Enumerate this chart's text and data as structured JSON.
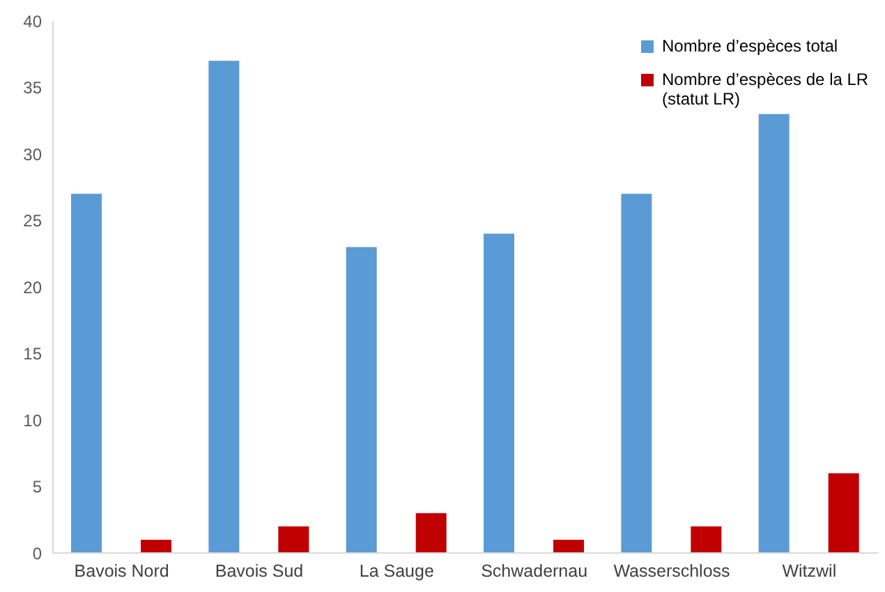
{
  "chart_data": {
    "type": "bar",
    "categories": [
      "Bavois Nord",
      "Bavois Sud",
      "La Sauge",
      "Schwadernau",
      "Wasserschloss",
      "Witzwil"
    ],
    "series": [
      {
        "name": "Nombre d’espèces total",
        "color": "#5b9bd5",
        "values": [
          27,
          37,
          23,
          24,
          27,
          33
        ]
      },
      {
        "name": "Nombre d’espèces de la LR (statut LR)",
        "color": "#c00000",
        "values": [
          1,
          2,
          3,
          1,
          2,
          6
        ]
      }
    ],
    "ylim": [
      0,
      40
    ],
    "yticks": [
      0,
      5,
      10,
      15,
      20,
      25,
      30,
      35,
      40
    ],
    "grid": false,
    "legend": "top right"
  }
}
